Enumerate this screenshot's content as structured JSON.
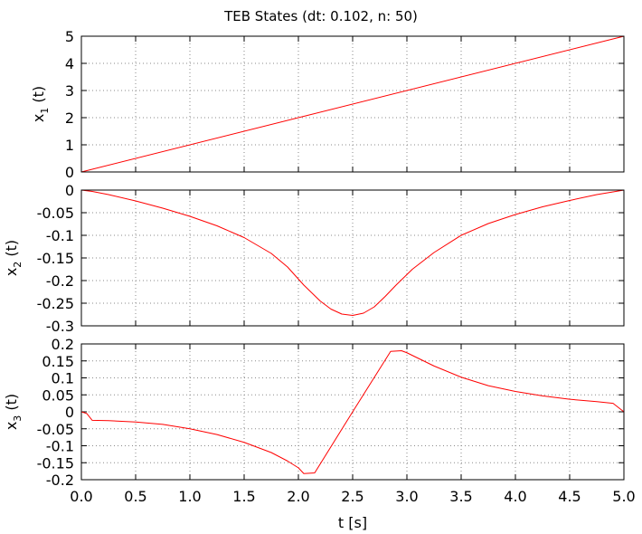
{
  "chart_data": [
    {
      "type": "line",
      "title": "TEB States (dt: 0.102, n: 50)",
      "ylabel": "x",
      "ylabel_sub": "1",
      "ylabel_tail": " (t)",
      "xlabel": "",
      "xlim": [
        0,
        5
      ],
      "ylim": [
        0,
        5
      ],
      "xticks": [
        0,
        0.5,
        1,
        1.5,
        2,
        2.5,
        3,
        3.5,
        4,
        4.5,
        5
      ],
      "xtick_labels": [],
      "yticks": [
        0,
        1,
        2,
        3,
        4,
        5
      ],
      "ytick_labels": [
        "0",
        "1",
        "2",
        "3",
        "4",
        "5"
      ],
      "grid": true,
      "color": "#ff0000",
      "series": [
        {
          "x": [
            0,
            5
          ],
          "y": [
            0,
            5
          ]
        }
      ]
    },
    {
      "type": "line",
      "title": "",
      "ylabel": "x",
      "ylabel_sub": "2",
      "ylabel_tail": " (t)",
      "xlabel": "",
      "xlim": [
        0,
        5
      ],
      "ylim": [
        -0.3,
        0
      ],
      "xticks": [
        0,
        0.5,
        1,
        1.5,
        2,
        2.5,
        3,
        3.5,
        4,
        4.5,
        5
      ],
      "xtick_labels": [],
      "yticks": [
        -0.3,
        -0.25,
        -0.2,
        -0.15,
        -0.1,
        -0.05,
        0
      ],
      "ytick_labels": [
        "-0.3",
        "-0.25",
        "-0.2",
        "-0.15",
        "-0.1",
        "-0.05",
        "0"
      ],
      "grid": true,
      "color": "#ff0000",
      "series": [
        {
          "x": [
            0,
            0.1,
            0.25,
            0.5,
            0.75,
            1.0,
            1.25,
            1.5,
            1.75,
            1.9,
            2.05,
            2.2,
            2.3,
            2.4,
            2.5,
            2.6,
            2.7,
            2.8,
            2.9,
            3.05,
            3.25,
            3.5,
            3.75,
            4.0,
            4.25,
            4.5,
            4.75,
            5.0
          ],
          "y": [
            0,
            -0.003,
            -0.01,
            -0.024,
            -0.04,
            -0.058,
            -0.079,
            -0.105,
            -0.14,
            -0.17,
            -0.21,
            -0.245,
            -0.263,
            -0.274,
            -0.277,
            -0.272,
            -0.258,
            -0.235,
            -0.21,
            -0.175,
            -0.138,
            -0.1,
            -0.074,
            -0.054,
            -0.037,
            -0.023,
            -0.01,
            0
          ]
        }
      ]
    },
    {
      "type": "line",
      "title": "",
      "ylabel": "x",
      "ylabel_sub": "3",
      "ylabel_tail": " (t)",
      "xlabel": "t [s]",
      "xlim": [
        0,
        5
      ],
      "ylim": [
        -0.2,
        0.2
      ],
      "xticks": [
        0,
        0.5,
        1,
        1.5,
        2,
        2.5,
        3,
        3.5,
        4,
        4.5,
        5
      ],
      "xtick_labels": [
        "0.0",
        "0.5",
        "1.0",
        "1.5",
        "2.0",
        "2.5",
        "3.0",
        "3.5",
        "4.0",
        "4.5",
        "5.0"
      ],
      "yticks": [
        -0.2,
        -0.15,
        -0.1,
        -0.05,
        0,
        0.05,
        0.1,
        0.15,
        0.2
      ],
      "ytick_labels": [
        "-0.2",
        "-0.15",
        "-0.1",
        "-0.05",
        "0",
        "0.05",
        "0.1",
        "0.15",
        "0.2"
      ],
      "grid": true,
      "color": "#ff0000",
      "series": [
        {
          "x": [
            0,
            0.05,
            0.1,
            0.25,
            0.5,
            0.75,
            1.0,
            1.25,
            1.5,
            1.75,
            1.9,
            2.0,
            2.05,
            2.15,
            2.5,
            2.85,
            2.95,
            3.0,
            3.25,
            3.5,
            3.75,
            4.0,
            4.25,
            4.5,
            4.75,
            4.9,
            5.0
          ],
          "y": [
            0,
            -0.005,
            -0.025,
            -0.026,
            -0.03,
            -0.037,
            -0.05,
            -0.067,
            -0.09,
            -0.12,
            -0.145,
            -0.165,
            -0.182,
            -0.18,
            0,
            0.178,
            0.18,
            0.174,
            0.135,
            0.102,
            0.077,
            0.06,
            0.047,
            0.037,
            0.03,
            0.025,
            0
          ]
        }
      ]
    }
  ]
}
